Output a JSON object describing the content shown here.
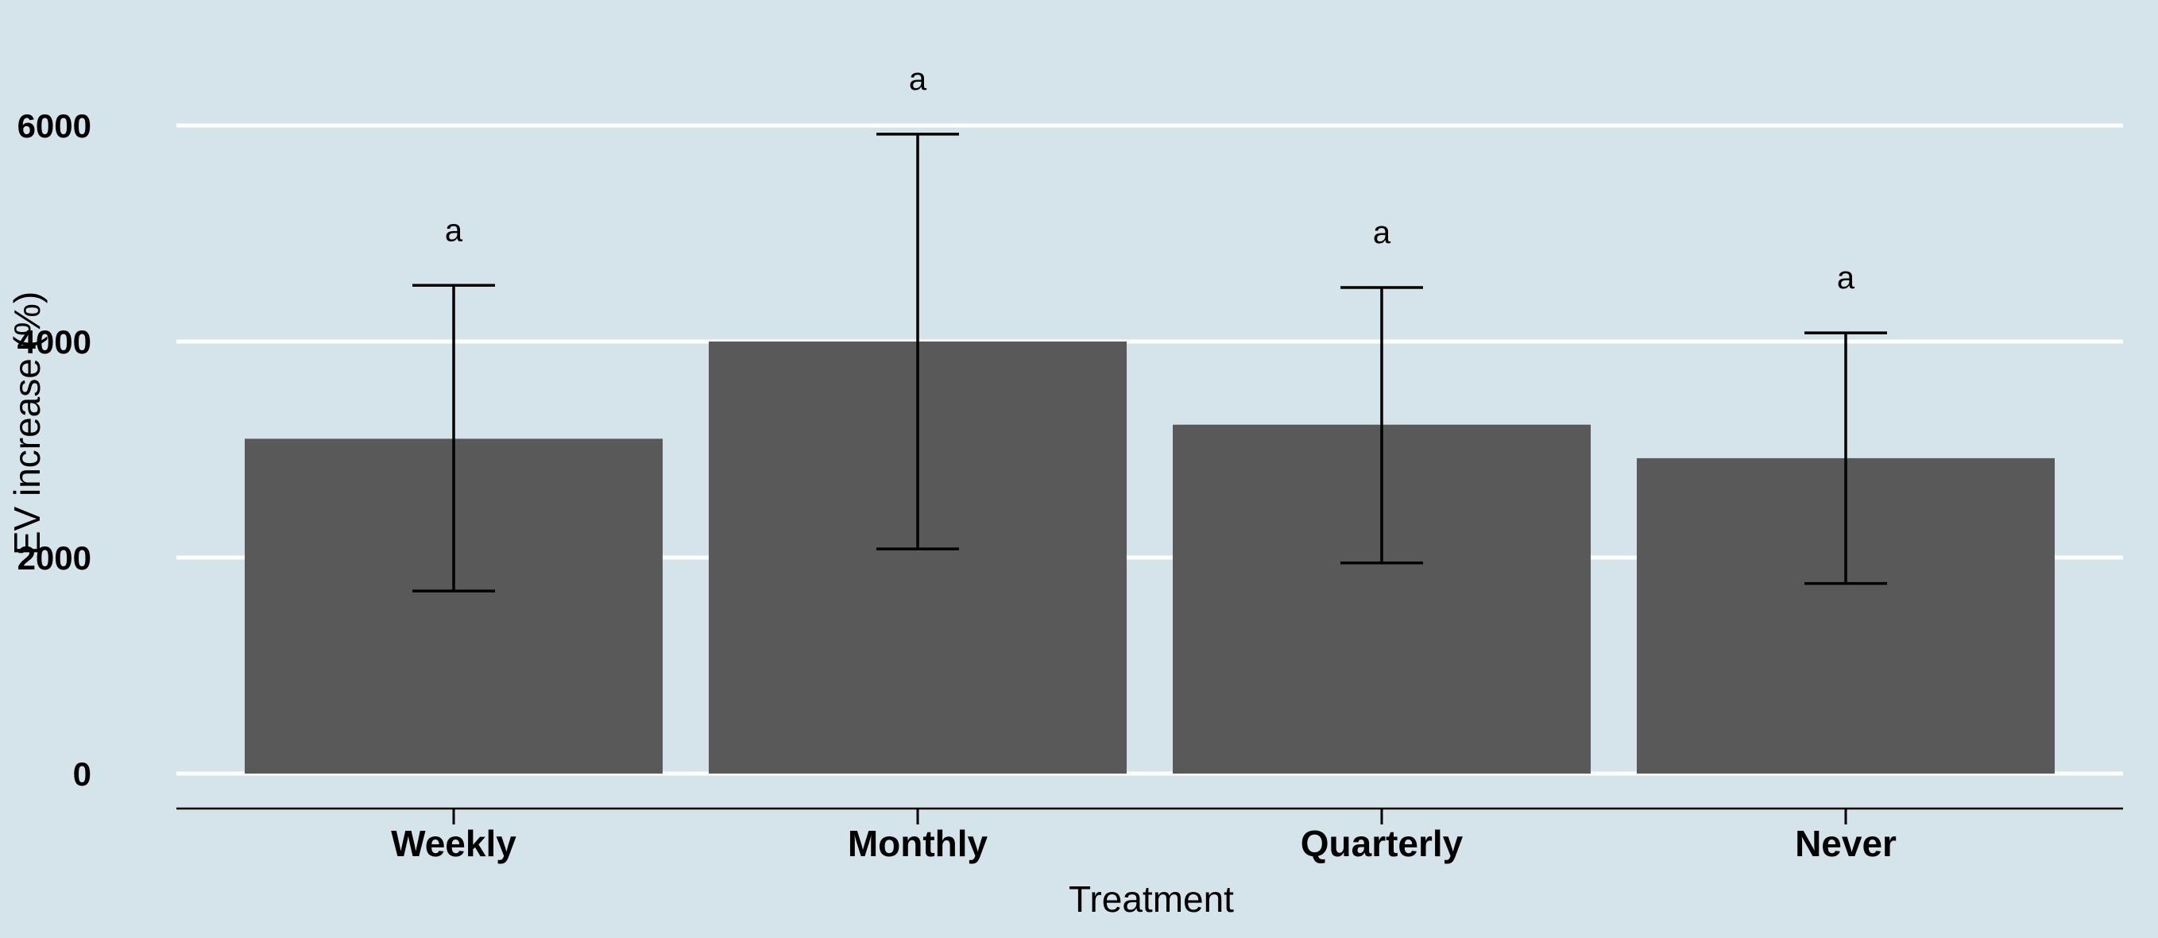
{
  "chart_data": {
    "type": "bar",
    "categories": [
      "Weekly",
      "Monthly",
      "Quarterly",
      "Never"
    ],
    "values": [
      3100,
      4000,
      3230,
      2920
    ],
    "error_low": [
      1690,
      2080,
      1950,
      1760
    ],
    "error_high": [
      4520,
      5920,
      4500,
      4080
    ],
    "significance_labels": [
      "a",
      "a",
      "a",
      "a"
    ],
    "title": "",
    "xlabel": "Treatment",
    "ylabel": "EV increase (%)",
    "ylim": [
      0,
      6000
    ],
    "yticks": [
      0,
      2000,
      4000,
      6000
    ],
    "grid": "horizontal-major",
    "legend": "none",
    "colors": {
      "background": "#d5e4eb",
      "bar": "#595959",
      "grid": "#ffffff",
      "axis": "#000000",
      "error_bar": "#000000"
    }
  }
}
